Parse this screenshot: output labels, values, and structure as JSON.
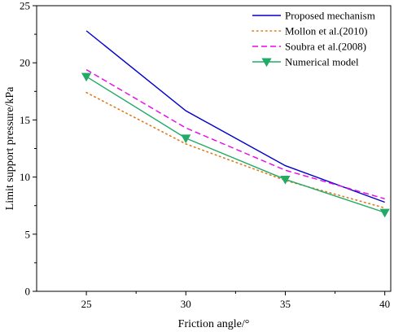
{
  "chart_data": {
    "type": "line",
    "xlabel": "Friction angle/°",
    "ylabel": "Limit support pressure/kPa",
    "x": [
      25,
      30,
      35,
      40
    ],
    "xlim": [
      22.5,
      40.3
    ],
    "ylim": [
      0,
      25
    ],
    "xticks": [
      "25",
      "30",
      "35",
      "40"
    ],
    "yticks": [
      "0",
      "5",
      "10",
      "15",
      "20",
      "25"
    ],
    "grid": false,
    "legend_position": "top-right",
    "series": [
      {
        "name": "Proposed mechanism",
        "values": [
          22.8,
          15.8,
          11.0,
          7.8
        ],
        "color": "#0000cc",
        "dash": "solid",
        "marker": "none"
      },
      {
        "name": "Mollon et al.(2010)",
        "values": [
          17.4,
          12.9,
          9.7,
          7.3
        ],
        "color": "#e07b1a",
        "dash": "dotted",
        "marker": "none"
      },
      {
        "name": "Soubra et al.(2008)",
        "values": [
          19.4,
          14.3,
          10.6,
          8.1
        ],
        "color": "#ee00ee",
        "dash": "dashed",
        "marker": "none"
      },
      {
        "name": "Numerical model",
        "values": [
          18.8,
          13.4,
          9.8,
          6.9
        ],
        "color": "#22aa66",
        "dash": "solid",
        "marker": "triangle-down"
      }
    ]
  }
}
